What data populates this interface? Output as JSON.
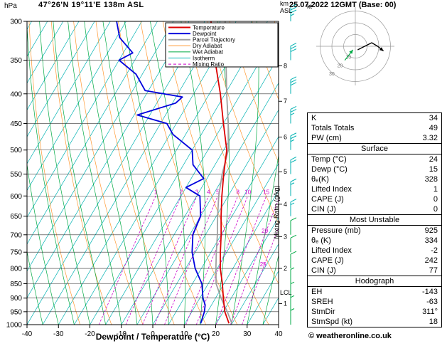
{
  "header": {
    "pressure_unit": "hPa",
    "station": "47°26'N 19°11'E 138m ASL",
    "datetime": "25.07.2022 12GMT (Base: 00)",
    "km_label": "km",
    "asl_label": "ASL",
    "kt_label": "kt",
    "copyright": "© weatheronline.co.uk"
  },
  "legend": {
    "items": [
      {
        "label": "Temperature",
        "color": "#dd0000",
        "width": 2,
        "dash": ""
      },
      {
        "label": "Dewpoint",
        "color": "#0000dd",
        "width": 2,
        "dash": ""
      },
      {
        "label": "Parcel Trajectory",
        "color": "#a0a0a0",
        "width": 2,
        "dash": ""
      },
      {
        "label": "Dry Adiabat",
        "color": "#ff9933",
        "width": 1,
        "dash": ""
      },
      {
        "label": "Wet Adiabat",
        "color": "#00aa44",
        "width": 1,
        "dash": ""
      },
      {
        "label": "Isotherm",
        "color": "#00b2b2",
        "width": 1,
        "dash": ""
      },
      {
        "label": "Mixing Ratio",
        "color": "#cc00cc",
        "width": 1,
        "dash": "4,3"
      }
    ]
  },
  "axes": {
    "pressure_ticks": [
      300,
      350,
      400,
      450,
      500,
      550,
      600,
      650,
      700,
      750,
      800,
      850,
      900,
      950,
      1000
    ],
    "temp_ticks": [
      -40,
      -30,
      -20,
      -10,
      0,
      10,
      20,
      30,
      40
    ],
    "x_label": "Dewpoint / Temperature (°C)",
    "mixing_axis_label": "Mixing Ratio (g/kg)",
    "km_ticks": [
      {
        "km": 1,
        "p": 920
      },
      {
        "km": 2,
        "p": 800
      },
      {
        "km": 3,
        "p": 705
      },
      {
        "km": 4,
        "p": 620
      },
      {
        "km": 5,
        "p": 545
      },
      {
        "km": 6,
        "p": 475
      },
      {
        "km": 7,
        "p": 412
      },
      {
        "km": 8,
        "p": 358
      }
    ],
    "lcl": {
      "label": "LCL",
      "p": 880
    }
  },
  "chart_data": {
    "type": "line",
    "subtype": "skewt-logp-sounding",
    "pressure_range": [
      300,
      1000
    ],
    "temp_range": [
      -40,
      40
    ],
    "skew_shift_degC": 56.5,
    "isotherm_stepC": 5,
    "dry_adiabats_K": {
      "min": 250,
      "max": 440,
      "step": 10
    },
    "wet_adiabats_startC": {
      "min": -40,
      "max": 35,
      "step": 5
    },
    "mixing_ratio_gkg": [
      1,
      2,
      3,
      4,
      5,
      8,
      10,
      15,
      20,
      25
    ],
    "colors": {
      "temperature": "#dd0000",
      "dewpoint": "#0000dd",
      "parcel": "#a0a0a0",
      "dry_adiabat": "#ff9933",
      "wet_adiabat": "#00aa44",
      "isotherm": "#00b2b2",
      "mixing_ratio": "#cc00cc",
      "grid": "#333333",
      "barb_upper": "#00b2b2",
      "barb_lower": "#00aa44"
    },
    "temperature_profile": {
      "p": [
        995,
        950,
        925,
        900,
        850,
        800,
        750,
        700,
        650,
        600,
        550,
        500,
        450,
        400,
        350,
        300
      ],
      "t": [
        24,
        20.5,
        19,
        17.5,
        14.5,
        11,
        8,
        5,
        1.5,
        -2,
        -5.5,
        -9,
        -15,
        -21.5,
        -29.5,
        -38
      ]
    },
    "dewpoint_profile": {
      "p": [
        995,
        950,
        925,
        900,
        850,
        800,
        750,
        700,
        650,
        600,
        580,
        560,
        530,
        500,
        470,
        450,
        435,
        415,
        405,
        395,
        370,
        350,
        340,
        320,
        300
      ],
      "t": [
        15,
        14,
        13,
        11,
        8,
        3,
        -1,
        -4,
        -5,
        -9,
        -15,
        -11,
        -17,
        -20,
        -29,
        -33,
        -44,
        -34,
        -33,
        -46,
        -52,
        -60,
        -57,
        -64,
        -68
      ]
    },
    "parcel_profile": {
      "p": [
        995,
        950,
        925,
        900,
        850,
        800,
        750,
        700,
        650,
        600,
        550,
        500,
        450,
        400,
        350,
        300
      ],
      "t": [
        24.9,
        21.3,
        19,
        16.8,
        12.5,
        9.6,
        6.7,
        3.8,
        0.4,
        -3,
        -6,
        -8.5,
        -13.5,
        -19.5,
        -26,
        -33.5
      ]
    },
    "winds": [
      {
        "p": 300,
        "kt": 35
      },
      {
        "p": 350,
        "kt": 30
      },
      {
        "p": 400,
        "kt": 30
      },
      {
        "p": 450,
        "kt": 25
      },
      {
        "p": 500,
        "kt": 25
      },
      {
        "p": 550,
        "kt": 20
      },
      {
        "p": 600,
        "kt": 15
      },
      {
        "p": 650,
        "kt": 15
      },
      {
        "p": 700,
        "kt": 10
      },
      {
        "p": 750,
        "kt": 10
      },
      {
        "p": 800,
        "kt": 10
      },
      {
        "p": 850,
        "kt": 5
      },
      {
        "p": 900,
        "kt": 5
      },
      {
        "p": 950,
        "kt": 5
      },
      {
        "p": 1000,
        "kt": 5
      }
    ],
    "hodograph": {
      "unit_label": "kt",
      "rings_kt": [
        10,
        20,
        30
      ],
      "ring_label_values": [
        10,
        20,
        30
      ],
      "trace": {
        "u": [
          2,
          6,
          10,
          14,
          19,
          24
        ],
        "v": [
          -3,
          -1,
          1,
          3,
          0,
          -4
        ]
      },
      "trace2": {
        "u": [
          -9,
          -2
        ],
        "v": [
          -12,
          -3
        ]
      },
      "colors": {
        "rings": "#999999",
        "trace": "#000000",
        "trace2": "#00aa44"
      }
    }
  },
  "table": {
    "sections": [
      {
        "header": null,
        "rows": [
          [
            "K",
            "34"
          ],
          [
            "Totals Totals",
            "49"
          ],
          [
            "PW (cm)",
            "3.32"
          ]
        ]
      },
      {
        "header": "Surface",
        "rows": [
          [
            "Temp (°C)",
            "24"
          ],
          [
            "Dewp (°C)",
            "15"
          ],
          [
            "θₑ(K)",
            "328"
          ],
          [
            "Lifted Index",
            "1"
          ],
          [
            "CAPE (J)",
            "0"
          ],
          [
            "CIN (J)",
            "0"
          ]
        ]
      },
      {
        "header": "Most Unstable",
        "rows": [
          [
            "Pressure (mb)",
            "925"
          ],
          [
            "θₑ (K)",
            "334"
          ],
          [
            "Lifted Index",
            "-2"
          ],
          [
            "CAPE (J)",
            "242"
          ],
          [
            "CIN (J)",
            "77"
          ]
        ]
      },
      {
        "header": "Hodograph",
        "rows": [
          [
            "EH",
            "-143"
          ],
          [
            "SREH",
            "-63"
          ],
          [
            "StmDir",
            "311°"
          ],
          [
            "StmSpd (kt)",
            "18"
          ]
        ]
      }
    ]
  }
}
